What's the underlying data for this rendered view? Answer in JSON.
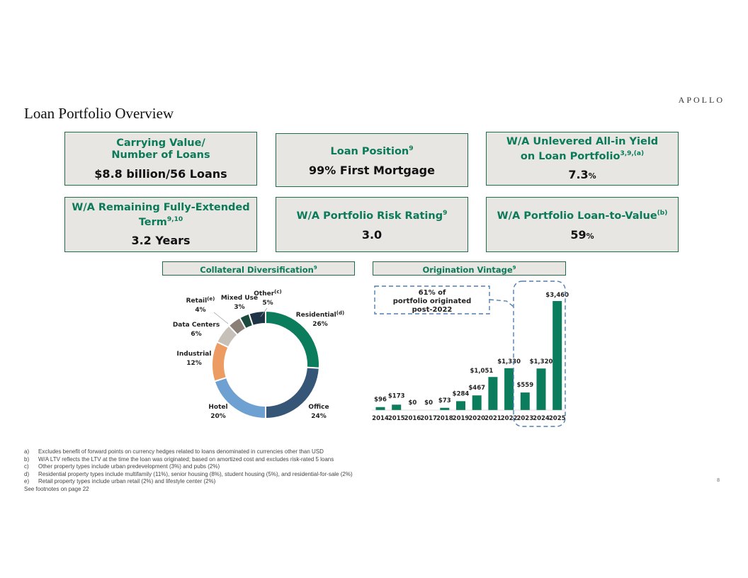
{
  "logo": "APOLLO",
  "title": "Loan Portfolio Overview",
  "kpis": [
    {
      "label1": "Carrying Value/",
      "label2": "Number of Loans",
      "sup": "",
      "value": "$8.8 billion/56 Loans",
      "unit": ""
    },
    {
      "label1": "Loan Position",
      "label2": "",
      "sup": "9",
      "value": "99% First Mortgage",
      "unit": ""
    },
    {
      "label1": "W/A Unlevered All-in Yield",
      "label2": "on Loan Portfolio",
      "sup": "3,9,(a)",
      "value": "7.3",
      "unit": "%"
    },
    {
      "label1": "W/A Remaining Fully-Extended",
      "label2": "Term",
      "sup": "9,10",
      "value": "3.2 Years",
      "unit": ""
    },
    {
      "label1": "W/A Portfolio Risk Rating",
      "label2": "",
      "sup": "9",
      "value": "3.0",
      "unit": ""
    },
    {
      "label1": "W/A Portfolio Loan-to-Value",
      "label2": "",
      "sup": "(b)",
      "value": "59",
      "unit": "%"
    }
  ],
  "sections": {
    "collateral": {
      "label": "Collateral Diversification",
      "sup": "9"
    },
    "vintage": {
      "label": "Origination Vintage",
      "sup": "9"
    }
  },
  "colors": {
    "accent_green": "#0b7a58",
    "residential": "#0b7d5d",
    "office": "#355676",
    "hotel": "#6ea0d2",
    "industrial": "#ec9c62",
    "data_centers": "#c6c0b9",
    "retail": "#8a8077",
    "mixed_use": "#1b4a3c",
    "other": "#1f3547",
    "bar": "#0b7d5d"
  },
  "chart_data": [
    {
      "type": "pie",
      "title": "Collateral Diversification",
      "slices": [
        {
          "label": "Residential",
          "sup": "(d)",
          "value": 26
        },
        {
          "label": "Office",
          "sup": "",
          "value": 24
        },
        {
          "label": "Hotel",
          "sup": "",
          "value": 20
        },
        {
          "label": "Industrial",
          "sup": "",
          "value": 12
        },
        {
          "label": "Data Centers",
          "sup": "",
          "value": 6
        },
        {
          "label": "Retail",
          "sup": "(e)",
          "value": 4
        },
        {
          "label": "Mixed Use",
          "sup": "",
          "value": 3
        },
        {
          "label": "Other",
          "sup": "(c)",
          "value": 5
        }
      ]
    },
    {
      "type": "bar",
      "title": "Origination Vintage",
      "categories": [
        "2014",
        "2015",
        "2016",
        "2017",
        "2018",
        "2019",
        "2020",
        "2021",
        "2022",
        "2023",
        "2024",
        "2025"
      ],
      "values": [
        96,
        173,
        0,
        0,
        73,
        284,
        467,
        1051,
        1330,
        559,
        1320,
        3460
      ],
      "labels": [
        "$96",
        "$173",
        "$0",
        "$0",
        "$73",
        "$284",
        "$467",
        "$1,051",
        "$1,330",
        "$559",
        "$1,320",
        "$3,460"
      ],
      "callout": [
        "61% of",
        "portfolio originated",
        "post-2022"
      ]
    }
  ],
  "footnotes": [
    {
      "key": "a)",
      "text": "Excludes benefit of forward points on currency hedges related to loans denominated in currencies other than USD"
    },
    {
      "key": "b)",
      "text": "W/A LTV reflects the LTV at the time the loan was originated; based on amortized cost and excludes risk-rated 5 loans"
    },
    {
      "key": "c)",
      "text": "Other property types include urban predevelopment (3%) and pubs (2%)"
    },
    {
      "key": "d)",
      "text": "Residential property types include multifamily (11%), senior housing (8%), student housing (5%), and residential-for-sale (2%)"
    },
    {
      "key": "e)",
      "text": "Retail property types include urban retail (2%) and lifestyle center (2%)"
    }
  ],
  "footnote_see": "See footnotes on page 22",
  "page_number": "8"
}
